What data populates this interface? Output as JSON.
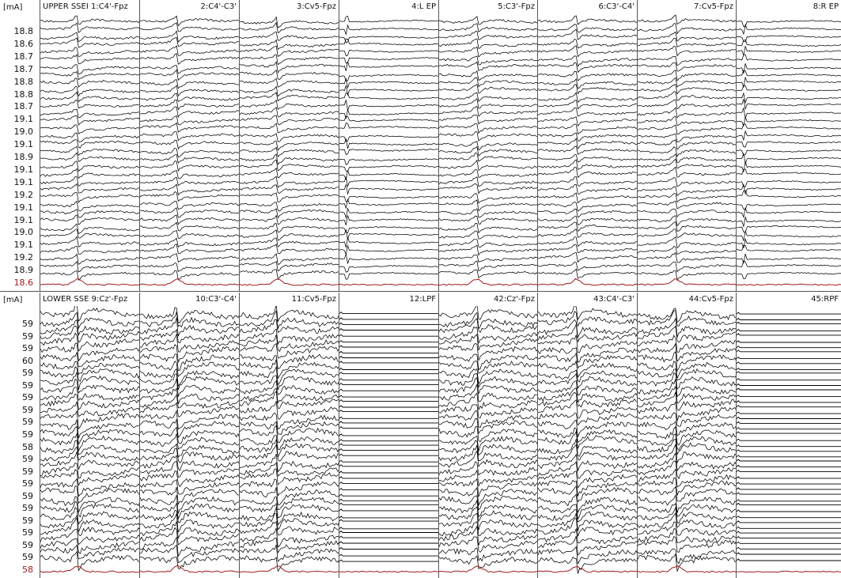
{
  "unit_label": "[mA]",
  "trace_color": "#000000",
  "reference_trace_color": "#a0191c",
  "upper": {
    "unit": "[mA]",
    "channels": [
      {
        "label": "UPPER SSEI 1:C4'-Fpz",
        "kind": "sep"
      },
      {
        "label": "2:C4'-C3'",
        "kind": "sep"
      },
      {
        "label": "3:Cv5-Fpz",
        "kind": "sep"
      },
      {
        "label": "4:L EP",
        "kind": "ep"
      },
      {
        "label": "5:C3'-Fpz",
        "kind": "sep"
      },
      {
        "label": "6:C3'-C4'",
        "kind": "sep"
      },
      {
        "label": "7:Cv5-Fpz",
        "kind": "sep"
      },
      {
        "label": "8:R EP",
        "kind": "ep"
      }
    ],
    "ticks": [
      "18.8",
      "18.6",
      "18.7",
      "18.7",
      "18.8",
      "18.8",
      "18.7",
      "19.1",
      "19.0",
      "19.1",
      "18.9",
      "19.1",
      "19.1",
      "19.2",
      "19.1",
      "19.1",
      "19.0",
      "19.1",
      "19.2",
      "18.9",
      "18.6"
    ]
  },
  "lower": {
    "unit": "[mA]",
    "channels": [
      {
        "label": "LOWER SSE 9:Cz'-Fpz",
        "kind": "sep"
      },
      {
        "label": "10:C3'-C4'",
        "kind": "sep"
      },
      {
        "label": "11:Cv5-Fpz",
        "kind": "sep"
      },
      {
        "label": "12:LPF",
        "kind": "pf"
      },
      {
        "label": "42:Cz'-Fpz",
        "kind": "sep"
      },
      {
        "label": "43:C4'-C3'",
        "kind": "sep"
      },
      {
        "label": "44:Cv5-Fpz",
        "kind": "sep"
      },
      {
        "label": "45:RPF",
        "kind": "pf"
      }
    ],
    "ticks": [
      "59",
      "59",
      "59",
      "60",
      "59",
      "59",
      "59",
      "59",
      "59",
      "59",
      "58",
      "59",
      "59",
      "59",
      "59",
      "59",
      "59",
      "59",
      "59",
      "59",
      "58"
    ]
  }
}
